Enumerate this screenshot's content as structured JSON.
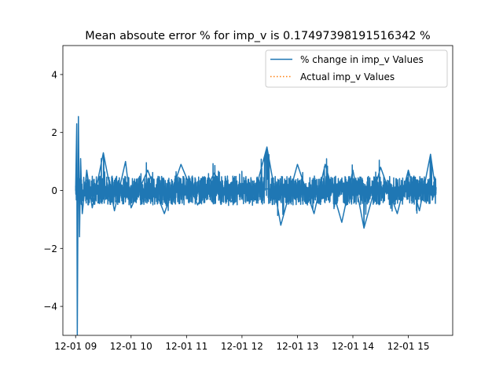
{
  "chart_data": {
    "type": "line",
    "title": "Mean absoute error % for imp_v is 0.17497398191516342 %",
    "xlabel": "",
    "ylabel": "",
    "x_tick_labels": [
      "12-01 09",
      "12-01 10",
      "12-01 11",
      "12-01 12",
      "12-01 13",
      "12-01 14",
      "12-01 15"
    ],
    "x_range_hours": [
      8.77,
      15.8
    ],
    "data_x_range_hours": [
      9.0,
      15.5
    ],
    "y_ticks": [
      -4,
      -2,
      0,
      2,
      4
    ],
    "y_tick_labels": [
      "−4",
      "−2",
      "0",
      "2",
      "4"
    ],
    "ylim": [
      -5,
      5
    ],
    "grid": false,
    "legend_position": "upper right",
    "series": [
      {
        "name": "% change in imp_v Values",
        "color": "#1f77b4",
        "style": "solid",
        "typical_band": [
          -0.5,
          0.5
        ],
        "x": [
          9.0,
          9.02,
          9.03,
          9.05,
          9.07,
          9.09,
          9.12,
          9.2,
          9.3,
          9.5,
          9.7,
          9.9,
          10.0,
          10.3,
          10.6,
          10.9,
          11.2,
          11.5,
          11.8,
          12.0,
          12.2,
          12.45,
          12.7,
          13.0,
          13.3,
          13.5,
          13.8,
          14.0,
          14.2,
          14.5,
          14.8,
          15.0,
          15.2,
          15.4,
          15.5
        ],
        "y": [
          0.0,
          2.3,
          -5.0,
          2.55,
          -1.6,
          1.1,
          -0.8,
          0.7,
          -0.6,
          1.3,
          -0.7,
          1.0,
          -0.6,
          0.7,
          -0.8,
          0.9,
          -0.5,
          0.6,
          -0.4,
          0.2,
          -0.3,
          1.5,
          -1.2,
          0.9,
          -0.8,
          0.9,
          -1.1,
          0.7,
          -1.3,
          0.8,
          -0.8,
          0.7,
          -0.7,
          1.25,
          -0.1
        ]
      },
      {
        "name": "Actual imp_v Values",
        "color": "#ff7f0e",
        "style": "dotted",
        "x": [],
        "y": []
      }
    ]
  }
}
